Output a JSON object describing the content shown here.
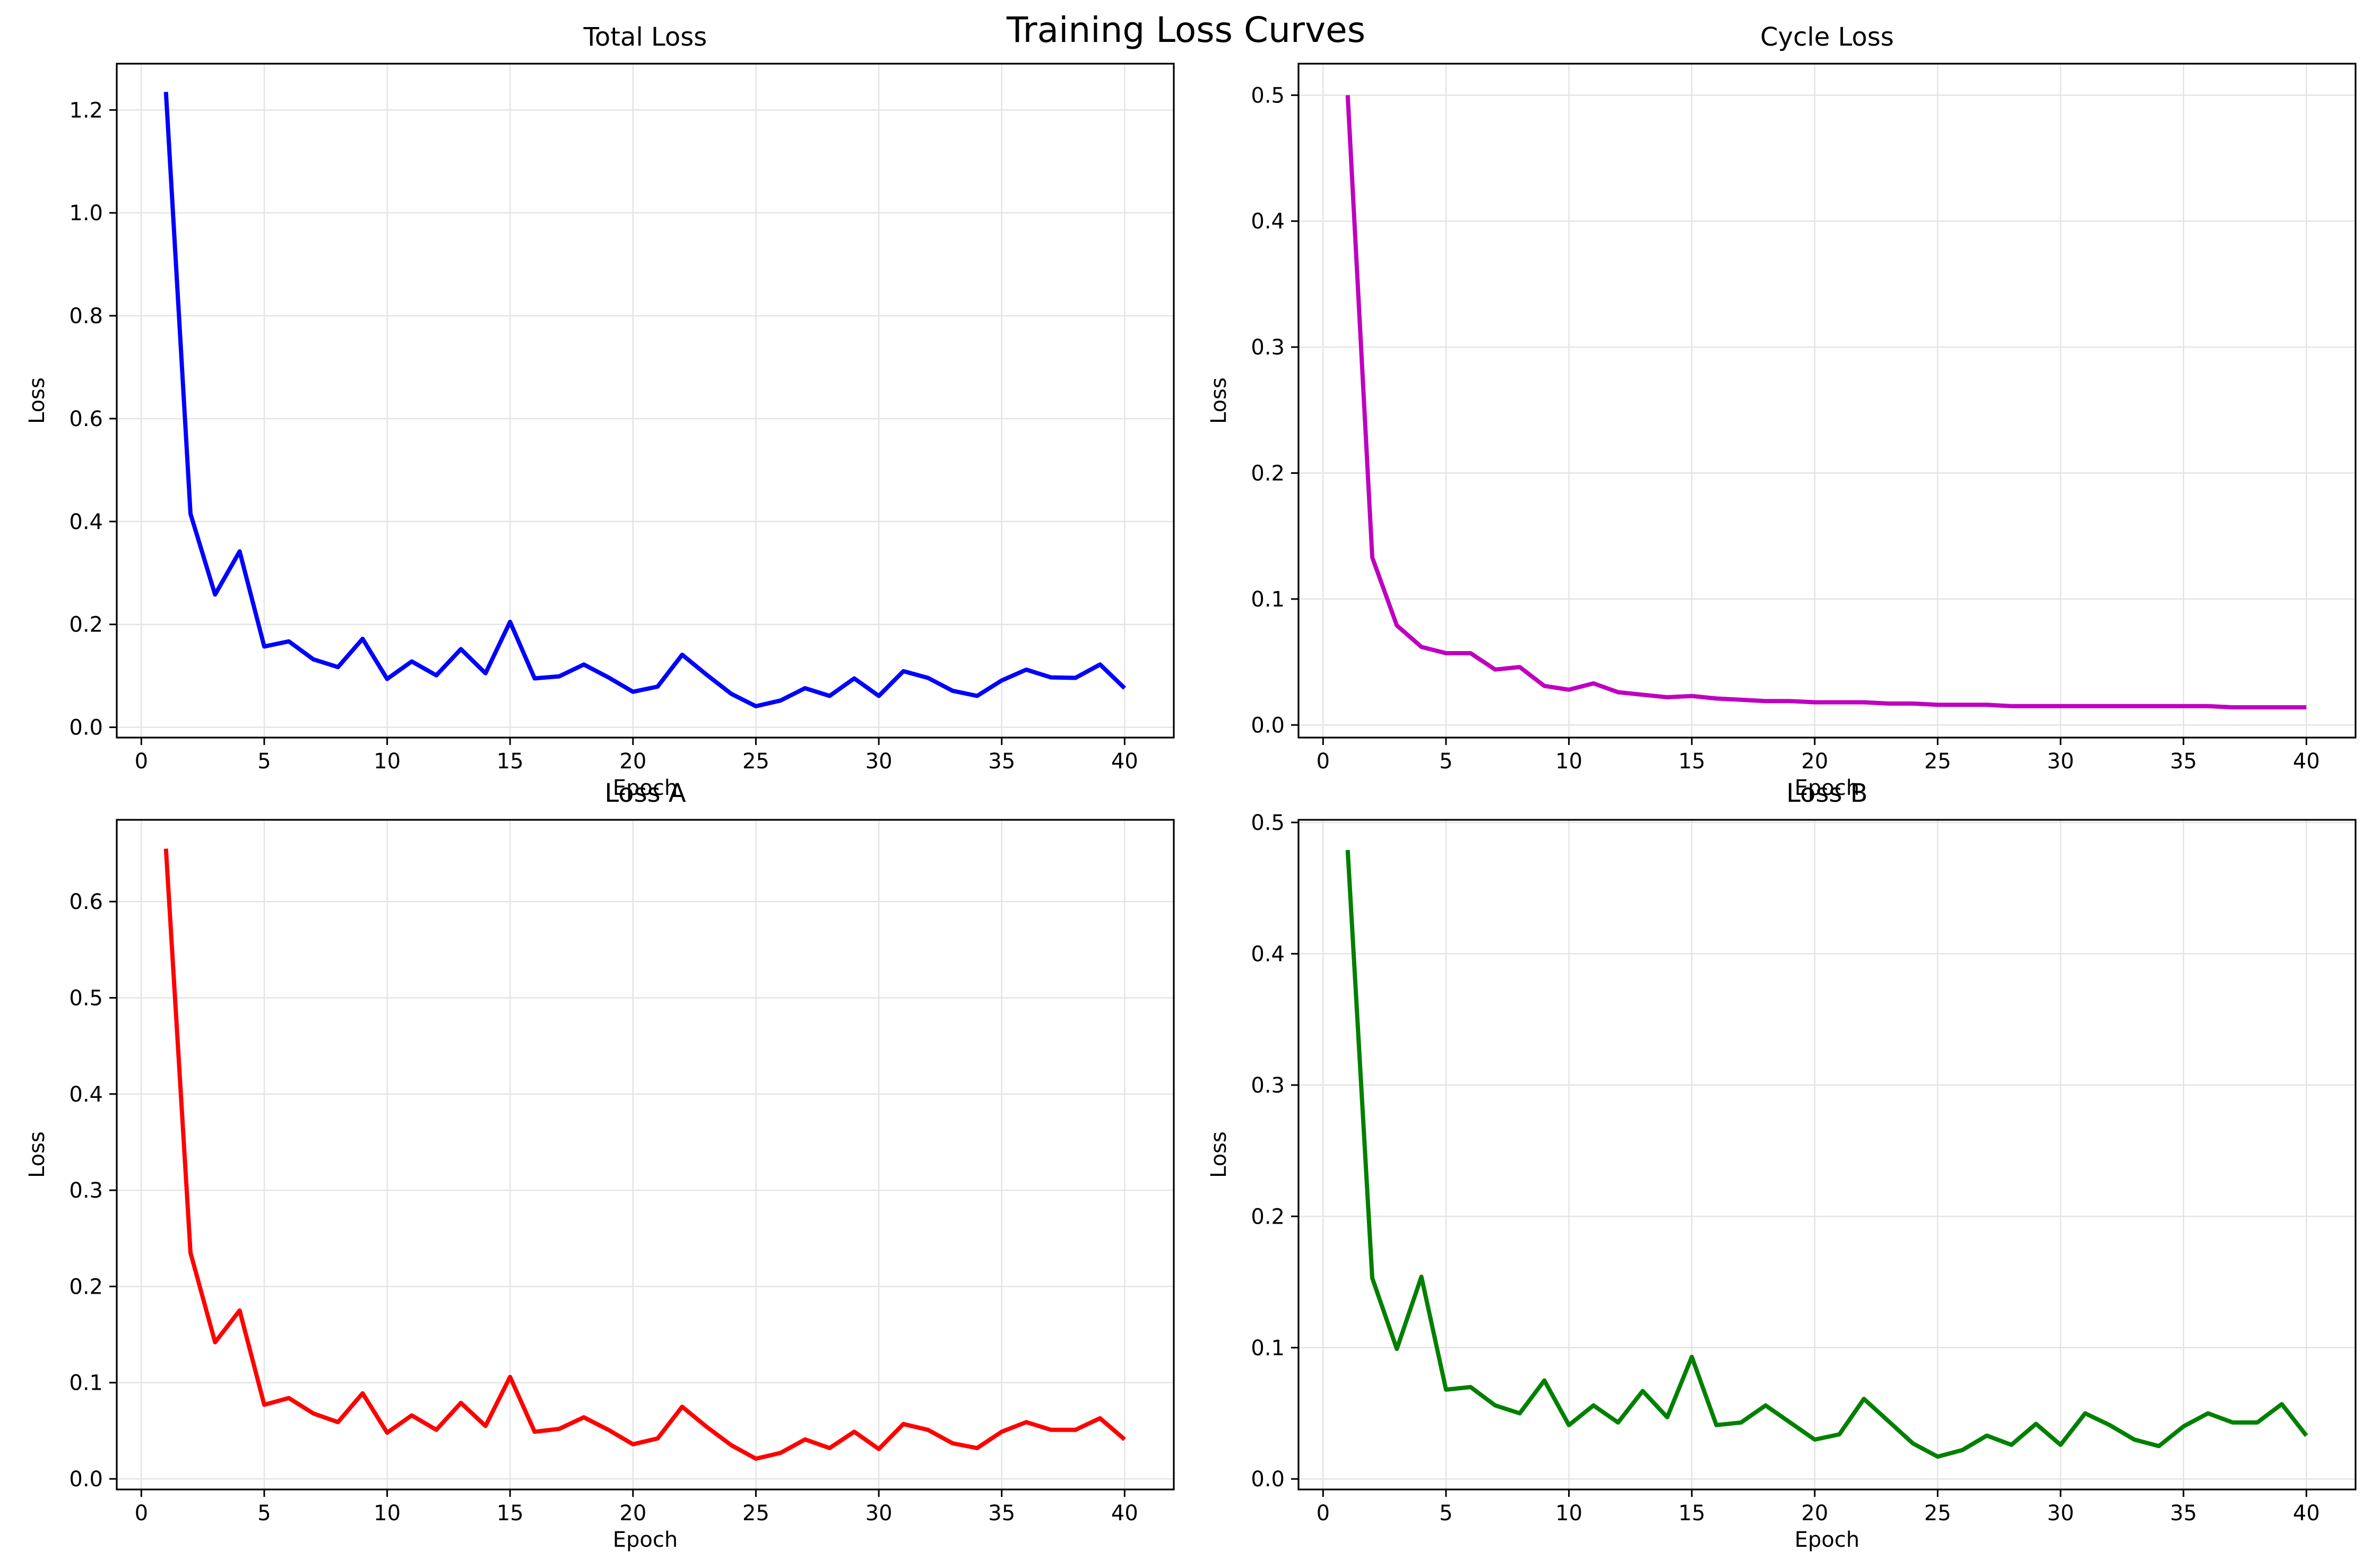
{
  "figure": {
    "title": "Training Loss Curves"
  },
  "chart_data": [
    {
      "type": "line",
      "title": "Total Loss",
      "xlabel": "Epoch",
      "ylabel": "Loss",
      "xlim": [
        -1,
        42
      ],
      "ylim": [
        -0.02,
        1.29
      ],
      "xticks": [
        0,
        5,
        10,
        15,
        20,
        25,
        30,
        35,
        40
      ],
      "xtick_labels": [
        "0",
        "5",
        "10",
        "15",
        "20",
        "25",
        "30",
        "35",
        "40"
      ],
      "yticks": [
        0.0,
        0.2,
        0.4,
        0.6,
        0.8,
        1.0,
        1.2
      ],
      "ytick_labels": [
        "0.0",
        "0.2",
        "0.4",
        "0.6",
        "0.8",
        "1.0",
        "1.2"
      ],
      "grid": true,
      "color": "#0000ff",
      "x": [
        1,
        2,
        3,
        4,
        5,
        6,
        7,
        8,
        9,
        10,
        11,
        12,
        13,
        14,
        15,
        16,
        17,
        18,
        19,
        20,
        21,
        22,
        23,
        24,
        25,
        26,
        27,
        28,
        29,
        30,
        31,
        32,
        33,
        34,
        35,
        36,
        37,
        38,
        39,
        40
      ],
      "y": [
        1.235,
        0.415,
        0.258,
        0.342,
        0.157,
        0.167,
        0.132,
        0.117,
        0.172,
        0.094,
        0.128,
        0.101,
        0.152,
        0.105,
        0.205,
        0.095,
        0.099,
        0.122,
        0.097,
        0.069,
        0.079,
        0.141,
        0.102,
        0.065,
        0.041,
        0.052,
        0.076,
        0.061,
        0.095,
        0.061,
        0.109,
        0.096,
        0.071,
        0.061,
        0.091,
        0.112,
        0.097,
        0.096,
        0.122,
        0.076
      ]
    },
    {
      "type": "line",
      "title": "Cycle Loss",
      "xlabel": "Epoch",
      "ylabel": "Loss",
      "xlim": [
        -1,
        42
      ],
      "ylim": [
        -0.01,
        0.525
      ],
      "xticks": [
        0,
        5,
        10,
        15,
        20,
        25,
        30,
        35,
        40
      ],
      "xtick_labels": [
        "0",
        "5",
        "10",
        "15",
        "20",
        "25",
        "30",
        "35",
        "40"
      ],
      "yticks": [
        0.0,
        0.1,
        0.2,
        0.3,
        0.4,
        0.5
      ],
      "ytick_labels": [
        "0.0",
        "0.1",
        "0.2",
        "0.3",
        "0.4",
        "0.5"
      ],
      "grid": true,
      "color": "#bf00bf",
      "x": [
        1,
        2,
        3,
        4,
        5,
        6,
        7,
        8,
        9,
        10,
        11,
        12,
        13,
        14,
        15,
        16,
        17,
        18,
        19,
        20,
        21,
        22,
        23,
        24,
        25,
        26,
        27,
        28,
        29,
        30,
        31,
        32,
        33,
        34,
        35,
        36,
        37,
        38,
        39,
        40
      ],
      "y": [
        0.5,
        0.133,
        0.079,
        0.062,
        0.057,
        0.057,
        0.044,
        0.046,
        0.031,
        0.028,
        0.033,
        0.026,
        0.024,
        0.022,
        0.023,
        0.021,
        0.02,
        0.019,
        0.019,
        0.018,
        0.018,
        0.018,
        0.017,
        0.017,
        0.016,
        0.016,
        0.016,
        0.015,
        0.015,
        0.015,
        0.015,
        0.015,
        0.015,
        0.015,
        0.015,
        0.015,
        0.014,
        0.014,
        0.014,
        0.014
      ]
    },
    {
      "type": "line",
      "title": "Loss A",
      "xlabel": "Epoch",
      "ylabel": "Loss",
      "xlim": [
        -1,
        42
      ],
      "ylim": [
        -0.011,
        0.685
      ],
      "xticks": [
        0,
        5,
        10,
        15,
        20,
        25,
        30,
        35,
        40
      ],
      "xtick_labels": [
        "0",
        "5",
        "10",
        "15",
        "20",
        "25",
        "30",
        "35",
        "40"
      ],
      "yticks": [
        0.0,
        0.1,
        0.2,
        0.3,
        0.4,
        0.5,
        0.6
      ],
      "ytick_labels": [
        "0.0",
        "0.1",
        "0.2",
        "0.3",
        "0.4",
        "0.5",
        "0.6"
      ],
      "grid": true,
      "color": "#ff0000",
      "x": [
        1,
        2,
        3,
        4,
        5,
        6,
        7,
        8,
        9,
        10,
        11,
        12,
        13,
        14,
        15,
        16,
        17,
        18,
        19,
        20,
        21,
        22,
        23,
        24,
        25,
        26,
        27,
        28,
        29,
        30,
        31,
        32,
        33,
        34,
        35,
        36,
        37,
        38,
        39,
        40
      ],
      "y": [
        0.655,
        0.235,
        0.142,
        0.175,
        0.077,
        0.084,
        0.068,
        0.059,
        0.089,
        0.048,
        0.066,
        0.051,
        0.079,
        0.055,
        0.106,
        0.049,
        0.052,
        0.064,
        0.051,
        0.036,
        0.042,
        0.075,
        0.054,
        0.035,
        0.021,
        0.027,
        0.041,
        0.032,
        0.049,
        0.031,
        0.057,
        0.051,
        0.037,
        0.032,
        0.049,
        0.059,
        0.051,
        0.051,
        0.063,
        0.041
      ]
    },
    {
      "type": "line",
      "title": "Loss B",
      "xlabel": "Epoch",
      "ylabel": "Loss",
      "xlim": [
        -1,
        42
      ],
      "ylim": [
        -0.008,
        0.502
      ],
      "xticks": [
        0,
        5,
        10,
        15,
        20,
        25,
        30,
        35,
        40
      ],
      "xtick_labels": [
        "0",
        "5",
        "10",
        "15",
        "20",
        "25",
        "30",
        "35",
        "40"
      ],
      "yticks": [
        0.0,
        0.1,
        0.2,
        0.3,
        0.4,
        0.5
      ],
      "ytick_labels": [
        "0.0",
        "0.1",
        "0.2",
        "0.3",
        "0.4",
        "0.5"
      ],
      "grid": true,
      "color": "#008000",
      "x": [
        1,
        2,
        3,
        4,
        5,
        6,
        7,
        8,
        9,
        10,
        11,
        12,
        13,
        14,
        15,
        16,
        17,
        18,
        19,
        20,
        21,
        22,
        23,
        24,
        25,
        26,
        27,
        28,
        29,
        30,
        31,
        32,
        33,
        34,
        35,
        36,
        37,
        38,
        39,
        40
      ],
      "y": [
        0.479,
        0.153,
        0.099,
        0.154,
        0.068,
        0.07,
        0.056,
        0.05,
        0.075,
        0.041,
        0.056,
        0.043,
        0.067,
        0.047,
        0.093,
        0.041,
        0.043,
        0.056,
        0.043,
        0.03,
        0.034,
        0.061,
        0.044,
        0.027,
        0.017,
        0.022,
        0.033,
        0.026,
        0.042,
        0.026,
        0.05,
        0.041,
        0.03,
        0.025,
        0.04,
        0.05,
        0.043,
        0.043,
        0.057,
        0.033
      ]
    }
  ]
}
